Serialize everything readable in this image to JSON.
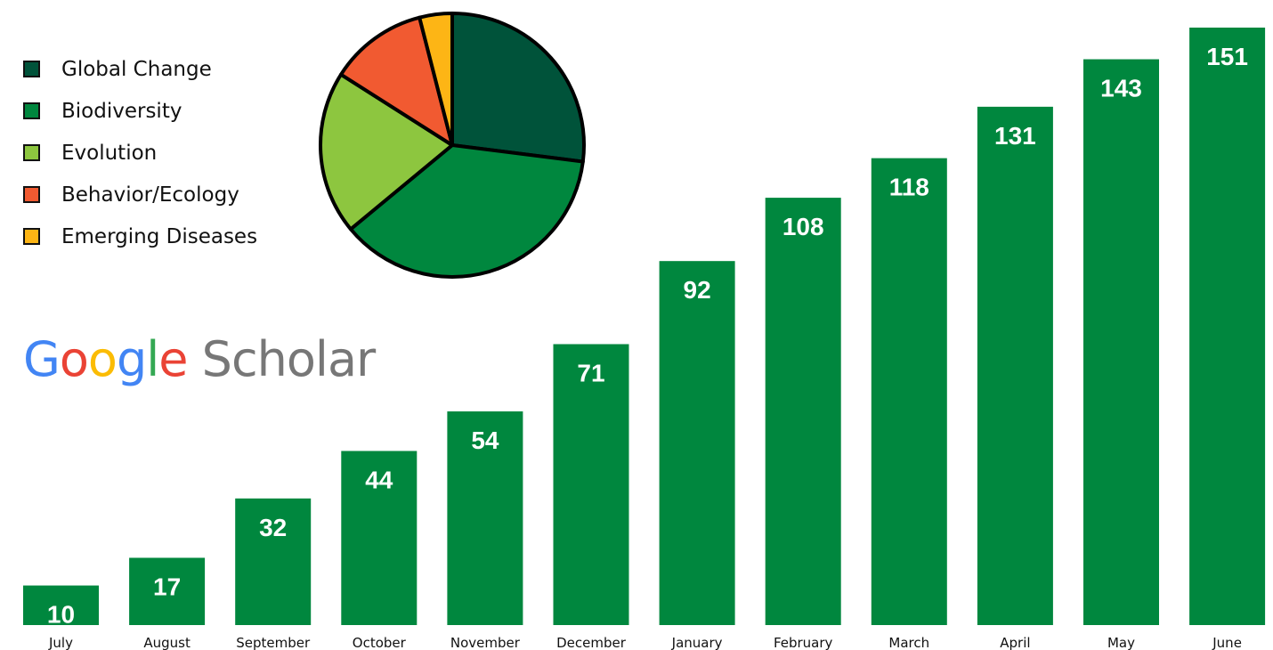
{
  "logo": {
    "letters": [
      {
        "char": "G",
        "color": "#4285F4"
      },
      {
        "char": "o",
        "color": "#EA4335"
      },
      {
        "char": "o",
        "color": "#FBBC05"
      },
      {
        "char": "g",
        "color": "#4285F4"
      },
      {
        "char": "l",
        "color": "#34A853"
      },
      {
        "char": "e",
        "color": "#EA4335"
      },
      {
        "char": " ",
        "color": "#777777"
      },
      {
        "char": "S",
        "color": "#777777"
      },
      {
        "char": "c",
        "color": "#777777"
      },
      {
        "char": "h",
        "color": "#777777"
      },
      {
        "char": "o",
        "color": "#777777"
      },
      {
        "char": "l",
        "color": "#777777"
      },
      {
        "char": "a",
        "color": "#777777"
      },
      {
        "char": "r",
        "color": "#777777"
      }
    ]
  },
  "chart_data": [
    {
      "type": "bar",
      "categories": [
        "July",
        "August",
        "September",
        "October",
        "November",
        "December",
        "January",
        "February",
        "March",
        "April",
        "May",
        "June"
      ],
      "values": [
        10,
        17,
        32,
        44,
        54,
        71,
        92,
        108,
        118,
        131,
        143,
        151
      ],
      "ylim": [
        0,
        151
      ],
      "grid": false,
      "bar_color": "#00873E",
      "data_labels": true
    },
    {
      "type": "pie",
      "start": "12 o'clock",
      "direction": "clockwise",
      "legend_position": "left",
      "slices": [
        {
          "label": "Global Change",
          "value": 27,
          "color": "#00533A"
        },
        {
          "label": "Biodiversity",
          "value": 37,
          "color": "#00873E"
        },
        {
          "label": "Evolution",
          "value": 20,
          "color": "#8DC63F"
        },
        {
          "label": "Behavior/Ecology",
          "value": 12,
          "color": "#F15A31"
        },
        {
          "label": "Emerging Diseases",
          "value": 4,
          "color": "#FDB515"
        }
      ]
    }
  ]
}
